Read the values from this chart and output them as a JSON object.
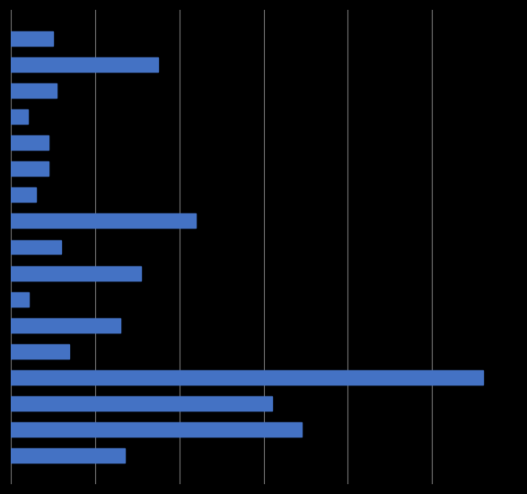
{
  "bar_color": "#4472C4",
  "background_color": "#000000",
  "grid_color": "#6F6F6F",
  "grid_linewidth": 0.8,
  "xlim": [
    0,
    600
  ],
  "grid_ticks": [
    0,
    100,
    200,
    300,
    400,
    500
  ],
  "bar_values": [
    50,
    175,
    55,
    20,
    45,
    45,
    30,
    220,
    60,
    155,
    22,
    130,
    70,
    560,
    310,
    345,
    135
  ],
  "n_bars": 17,
  "bar_height": 0.55,
  "fig_width": 5.87,
  "fig_height": 5.51,
  "dpi": 100
}
